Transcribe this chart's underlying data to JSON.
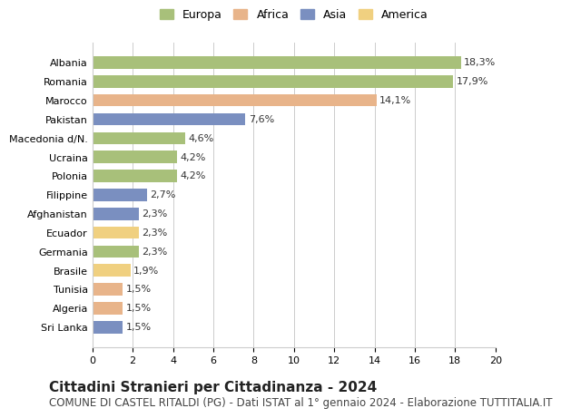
{
  "categories": [
    "Albania",
    "Romania",
    "Marocco",
    "Pakistan",
    "Macedonia d/N.",
    "Ucraina",
    "Polonia",
    "Filippine",
    "Afghanistan",
    "Ecuador",
    "Germania",
    "Brasile",
    "Tunisia",
    "Algeria",
    "Sri Lanka"
  ],
  "values": [
    18.3,
    17.9,
    14.1,
    7.6,
    4.6,
    4.2,
    4.2,
    2.7,
    2.3,
    2.3,
    2.3,
    1.9,
    1.5,
    1.5,
    1.5
  ],
  "labels": [
    "18,3%",
    "17,9%",
    "14,1%",
    "7,6%",
    "4,6%",
    "4,2%",
    "4,2%",
    "2,7%",
    "2,3%",
    "2,3%",
    "2,3%",
    "1,9%",
    "1,5%",
    "1,5%",
    "1,5%"
  ],
  "continents": [
    "Europa",
    "Europa",
    "Africa",
    "Asia",
    "Europa",
    "Europa",
    "Europa",
    "Asia",
    "Asia",
    "America",
    "Europa",
    "America",
    "Africa",
    "Africa",
    "Asia"
  ],
  "colors": {
    "Europa": "#a8c07a",
    "Africa": "#e8b48a",
    "Asia": "#7a8fc0",
    "America": "#f0d080"
  },
  "legend_order": [
    "Europa",
    "Africa",
    "Asia",
    "America"
  ],
  "xlim": [
    0,
    20
  ],
  "xticks": [
    0,
    2,
    4,
    6,
    8,
    10,
    12,
    14,
    16,
    18,
    20
  ],
  "title": "Cittadini Stranieri per Cittadinanza - 2024",
  "subtitle": "COMUNE DI CASTEL RITALDI (PG) - Dati ISTAT al 1° gennaio 2024 - Elaborazione TUTTITALIA.IT",
  "background_color": "#ffffff",
  "grid_color": "#cccccc",
  "bar_height": 0.65,
  "title_fontsize": 11,
  "subtitle_fontsize": 8.5,
  "label_fontsize": 8,
  "tick_fontsize": 8,
  "legend_fontsize": 9
}
